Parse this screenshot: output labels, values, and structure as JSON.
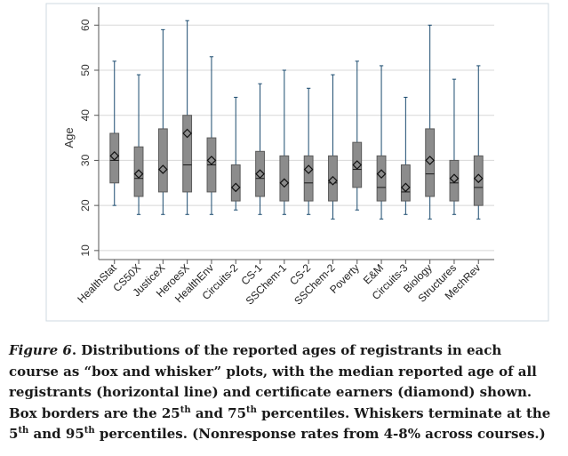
{
  "chart_data": {
    "type": "boxplot",
    "ylabel": "Age",
    "ylim": [
      8,
      64
    ],
    "yticks": [
      10,
      20,
      30,
      40,
      50,
      60
    ],
    "grid": "horizontal",
    "legend": "none",
    "colors": {
      "box": "#8c8c8c",
      "whisker": "#1a4a6e",
      "axis": "#555555",
      "grid": "#d8d8d8"
    },
    "categories": [
      "HealthStat",
      "CS50X",
      "JusticeX",
      "HeroesX",
      "HealthEnv",
      "Circuits-2",
      "CS-1",
      "SSChem-1",
      "CS-2",
      "SSChem-2",
      "Poverty",
      "E&M",
      "Circuits-3",
      "Biology",
      "Structures",
      "MechRev"
    ],
    "boxes": [
      {
        "p5": 20,
        "q1": 25,
        "median": 30,
        "q3": 36,
        "p95": 52,
        "cert_median": 31
      },
      {
        "p5": 18,
        "q1": 22,
        "median": 26,
        "q3": 33,
        "p95": 49,
        "cert_median": 27
      },
      {
        "p5": 18,
        "q1": 23,
        "median": 28,
        "q3": 37,
        "p95": 59,
        "cert_median": 28
      },
      {
        "p5": 18,
        "q1": 23,
        "median": 29,
        "q3": 40,
        "p95": 61,
        "cert_median": 36
      },
      {
        "p5": 18,
        "q1": 23,
        "median": 29,
        "q3": 35,
        "p95": 53,
        "cert_median": 30
      },
      {
        "p5": 19,
        "q1": 21,
        "median": 24,
        "q3": 29,
        "p95": 44,
        "cert_median": 24
      },
      {
        "p5": 18,
        "q1": 22,
        "median": 26,
        "q3": 32,
        "p95": 47,
        "cert_median": 27
      },
      {
        "p5": 18,
        "q1": 21,
        "median": 25,
        "q3": 31,
        "p95": 50,
        "cert_median": 25
      },
      {
        "p5": 18,
        "q1": 21,
        "median": 25,
        "q3": 31,
        "p95": 46,
        "cert_median": 28
      },
      {
        "p5": 17,
        "q1": 21,
        "median": 25,
        "q3": 31,
        "p95": 49,
        "cert_median": 25.5
      },
      {
        "p5": 19,
        "q1": 24,
        "median": 28,
        "q3": 34,
        "p95": 52,
        "cert_median": 29
      },
      {
        "p5": 17,
        "q1": 21,
        "median": 24,
        "q3": 31,
        "p95": 51,
        "cert_median": 27
      },
      {
        "p5": 18,
        "q1": 21,
        "median": 23,
        "q3": 29,
        "p95": 44,
        "cert_median": 24
      },
      {
        "p5": 17,
        "q1": 22,
        "median": 27,
        "q3": 37,
        "p95": 60,
        "cert_median": 30
      },
      {
        "p5": 18,
        "q1": 21,
        "median": 25,
        "q3": 30,
        "p95": 48,
        "cert_median": 26
      },
      {
        "p5": 17,
        "q1": 20,
        "median": 24,
        "q3": 31,
        "p95": 51,
        "cert_median": 26
      }
    ]
  },
  "caption": {
    "label": "Figure 6",
    "p1": ". Distributions of the reported ages of registrants in each course as “box and whisker” plots, with the median reported age of all registrants (horizontal line) and certificate earners (diamond) shown.  Box borders are the 25",
    "sup1": "th",
    "p2": " and 75",
    "sup2": "th",
    "p3": " percentiles.  Whiskers terminate at the 5",
    "sup3": "th",
    "p4": " and 95",
    "sup4": "th",
    "p5": " percentiles.  (Nonresponse rates from 4-8% across courses.)"
  }
}
